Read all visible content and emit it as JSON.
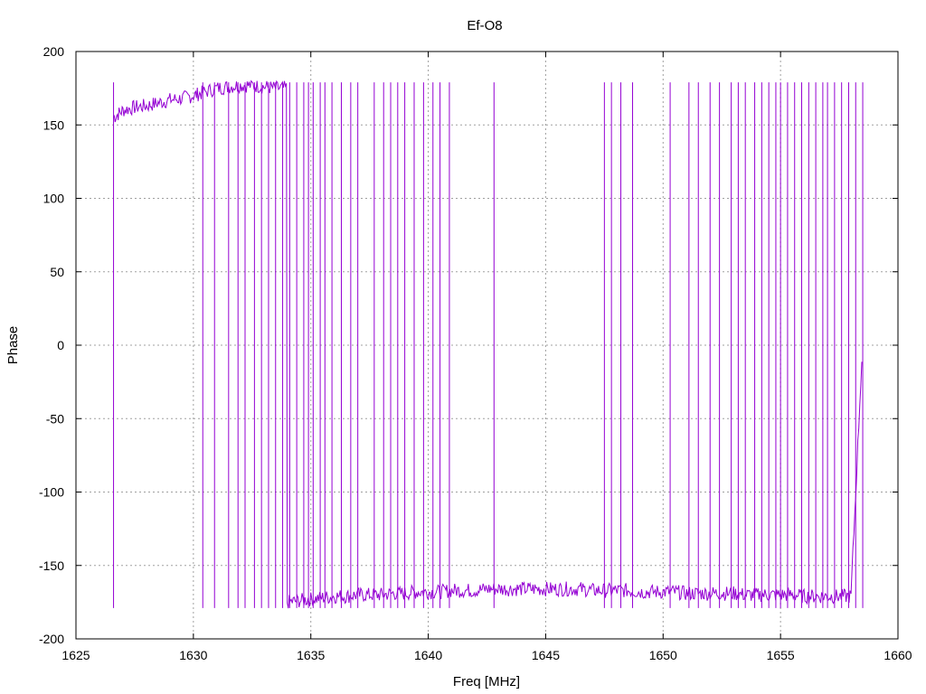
{
  "chart_data": {
    "type": "line",
    "title": "Ef-O8",
    "xlabel": "Freq [MHz]",
    "ylabel": "Phase",
    "xlim": [
      1625,
      1660
    ],
    "ylim": [
      -200,
      200
    ],
    "xticks": [
      1625,
      1630,
      1635,
      1640,
      1645,
      1650,
      1655,
      1660
    ],
    "yticks": [
      -200,
      -150,
      -100,
      -50,
      0,
      50,
      100,
      150,
      200
    ],
    "grid": true,
    "legend": "none",
    "series": [
      {
        "color": "#9400d3",
        "x_start": 1626.6,
        "x_end": 1658.5,
        "x": [
          1626.6,
          1627.0,
          1627.5,
          1628.0,
          1628.5,
          1629.0,
          1629.5,
          1630.0,
          1630.4,
          1631.0,
          1631.5,
          1632.0,
          1632.5,
          1633.0,
          1633.5,
          1634.0,
          1634.5,
          1635.0,
          1635.5,
          1636.0,
          1636.5,
          1637.0,
          1637.5,
          1638.0,
          1638.5,
          1639.0,
          1639.5,
          1640.0,
          1640.5,
          1641.0,
          1641.5,
          1642.0,
          1642.5,
          1643.0,
          1643.5,
          1644.0,
          1644.5,
          1645.0,
          1645.5,
          1646.0,
          1646.5,
          1647.0,
          1647.5,
          1648.0,
          1648.5,
          1649.0,
          1649.5,
          1650.0,
          1650.5,
          1651.0,
          1651.5,
          1652.0,
          1652.5,
          1653.0,
          1653.5,
          1654.0,
          1654.5,
          1655.0,
          1655.5,
          1656.0,
          1656.5,
          1657.0,
          1657.5,
          1658.0,
          1658.5
        ],
        "y": [
          155,
          160,
          162,
          163,
          165,
          167,
          168,
          170,
          172,
          175,
          176,
          177,
          177,
          176,
          175,
          -175,
          -174,
          -173,
          -172,
          -171,
          -171,
          -170,
          -170,
          -170,
          -169,
          -169,
          -168,
          -168,
          -168,
          -167,
          -167,
          -167,
          -166,
          -166,
          -166,
          -166,
          -166,
          -166,
          -166,
          -166,
          -166,
          -167,
          -167,
          -167,
          -167,
          -168,
          -168,
          -168,
          -168,
          -169,
          -169,
          -169,
          -169,
          -169,
          -170,
          -170,
          -170,
          -170,
          -170,
          -171,
          -171,
          -171,
          -171,
          -171,
          5
        ],
        "wrap_jumps_x": [
          1626.6,
          1630.4,
          1630.9,
          1631.5,
          1631.9,
          1632.2,
          1632.6,
          1632.9,
          1633.2,
          1633.5,
          1633.8,
          1634.1,
          1634.4,
          1634.7,
          1634.9,
          1635.1,
          1635.4,
          1635.6,
          1635.9,
          1636.3,
          1636.7,
          1637.0,
          1637.7,
          1638.1,
          1638.4,
          1638.7,
          1639.0,
          1639.4,
          1639.8,
          1640.2,
          1640.5,
          1640.9,
          1642.8,
          1647.5,
          1647.8,
          1648.2,
          1648.7,
          1650.3,
          1651.1,
          1651.5,
          1652.0,
          1652.4,
          1652.9,
          1653.2,
          1653.5,
          1653.9,
          1654.2,
          1654.5,
          1654.8,
          1655.0,
          1655.3,
          1655.6,
          1655.9,
          1656.2,
          1656.5,
          1656.8,
          1657.0,
          1657.3,
          1657.6,
          1657.9,
          1658.2,
          1658.5
        ]
      }
    ]
  }
}
